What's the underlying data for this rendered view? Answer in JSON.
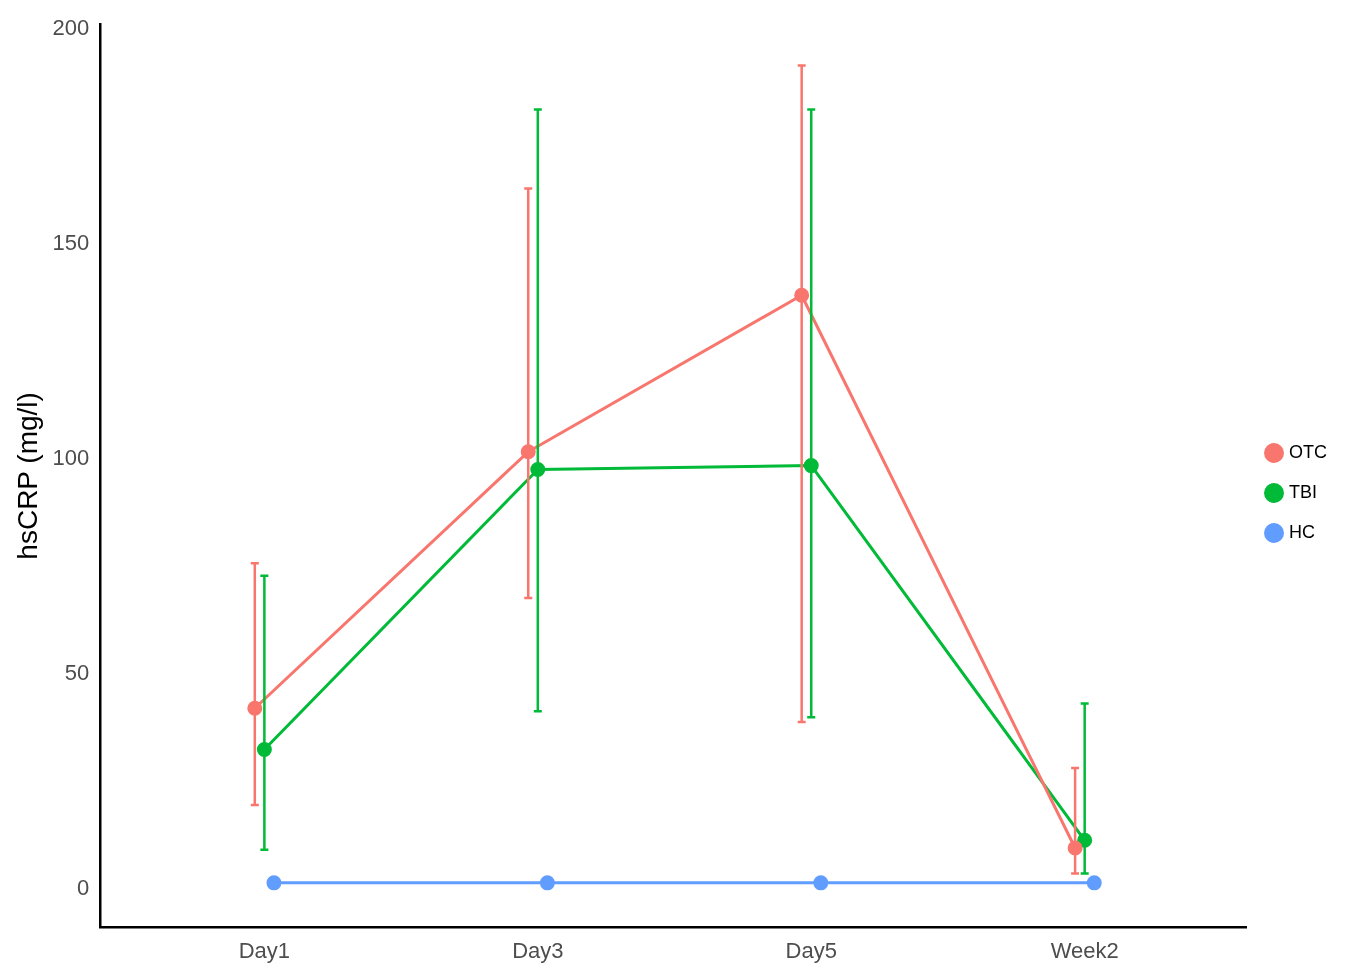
{
  "chart_data": {
    "type": "line",
    "ylabel": "hsCRP (mg/l)",
    "categories": [
      "Day1",
      "Day3",
      "Day5",
      "Week2"
    ],
    "ylim": [
      -9,
      201
    ],
    "yticks": [
      0,
      50,
      100,
      150,
      200
    ],
    "grid": false,
    "legend": "right",
    "marker": "circle",
    "line_style": "solid",
    "series": [
      {
        "name": "OTC",
        "color": "#f8766d",
        "values": [
          42,
          101.6,
          138,
          9.5
        ],
        "errors": [
          [
            19.5,
            75.7
          ],
          [
            67.6,
            162.8
          ],
          [
            38.8,
            191.4
          ],
          [
            3.6,
            28.1
          ]
        ]
      },
      {
        "name": "TBI",
        "color": "#00ba38",
        "values": [
          32.4,
          97.5,
          98.4,
          11.3
        ],
        "errors": [
          [
            9.1,
            72.8
          ],
          [
            41.3,
            181.2
          ],
          [
            39.9,
            181.2
          ],
          [
            3.6,
            43.1
          ]
        ]
      },
      {
        "name": "HC",
        "color": "#619cff",
        "values": [
          1.4,
          1.4,
          1.4,
          1.4
        ]
      }
    ]
  }
}
